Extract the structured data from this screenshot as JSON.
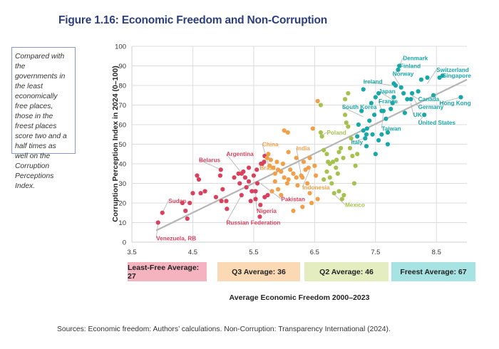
{
  "figure": {
    "title": "Figure 1.16: Economic Freedom and Non-Corruption",
    "callout": "Compared with the governments in the least economically free places, those in the freest places score two and a half times as well on the Corruption Perceptions Index.",
    "sources": "Sources: Economic freedom: Authors’ calculations. Non-Corruption: Transparency International (2024)."
  },
  "quartile_boxes": [
    {
      "label": "Least-Free Average: 27",
      "color": "#f5b3bf"
    },
    {
      "label": "Q3 Average: 36",
      "color": "#fbd9b5"
    },
    {
      "label": "Q2 Average: 46",
      "color": "#e3edbf"
    },
    {
      "label": "Freest Average: 67",
      "color": "#a8e3e3"
    }
  ],
  "chart_data": {
    "type": "scatter",
    "title": "Figure 1.16: Economic Freedom and Non-Corruption",
    "xlabel": "Average Economic Freedom 2000–2023",
    "ylabel": "Corruption Perception Index in 2024 (0–100)",
    "xlim": [
      3.5,
      9.0
    ],
    "ylim": [
      0,
      100
    ],
    "xticks": [
      3.5,
      4.5,
      5.5,
      6.5,
      7.5,
      8.5
    ],
    "yticks": [
      0,
      10,
      20,
      30,
      40,
      50,
      60,
      70,
      80,
      90,
      100
    ],
    "grid": true,
    "trendline": {
      "x": [
        3.9,
        9.0
      ],
      "y": [
        6,
        83
      ],
      "color": "#b5b5b5"
    },
    "series": [
      {
        "name": "Least-Free",
        "color": "#d9425f",
        "points": [
          [
            3.93,
            10
          ],
          [
            4.0,
            15
          ],
          [
            4.33,
            20
          ],
          [
            4.38,
            16
          ],
          [
            4.41,
            12
          ],
          [
            4.45,
            20
          ],
          [
            4.5,
            25
          ],
          [
            4.57,
            34
          ],
          [
            4.6,
            32
          ],
          [
            4.63,
            25
          ],
          [
            4.7,
            26
          ],
          [
            4.88,
            23
          ],
          [
            4.95,
            34
          ],
          [
            4.96,
            37
          ],
          [
            4.97,
            21
          ],
          [
            4.99,
            27
          ],
          [
            5.05,
            21
          ],
          [
            5.06,
            17
          ],
          [
            5.18,
            33
          ],
          [
            5.25,
            35
          ],
          [
            5.3,
            35
          ],
          [
            5.33,
            36
          ],
          [
            5.27,
            30
          ],
          [
            5.3,
            24
          ],
          [
            5.38,
            28
          ],
          [
            5.42,
            31
          ],
          [
            5.45,
            21
          ],
          [
            5.47,
            26
          ],
          [
            5.53,
            26
          ],
          [
            5.56,
            30
          ],
          [
            5.53,
            22
          ],
          [
            5.6,
            13
          ],
          [
            5.61,
            19
          ],
          [
            5.62,
            40
          ],
          [
            5.64,
            40
          ],
          [
            5.67,
            41
          ],
          [
            5.68,
            44
          ],
          [
            5.68,
            23
          ],
          [
            5.73,
            24
          ],
          [
            5.36,
            33
          ],
          [
            5.5,
            34
          ],
          [
            5.42,
            38
          ],
          [
            5.55,
            37
          ]
        ]
      },
      {
        "name": "Q3",
        "color": "#f0a04b",
        "points": [
          [
            5.72,
            43
          ],
          [
            5.74,
            45
          ],
          [
            5.78,
            42
          ],
          [
            5.82,
            38
          ],
          [
            5.85,
            35
          ],
          [
            5.76,
            39
          ],
          [
            5.88,
            41
          ],
          [
            5.9,
            37
          ],
          [
            5.95,
            36
          ],
          [
            5.85,
            31
          ],
          [
            5.8,
            26
          ],
          [
            5.9,
            27
          ],
          [
            5.95,
            24
          ],
          [
            6.0,
            57
          ],
          [
            6.06,
            56
          ],
          [
            6.07,
            46
          ],
          [
            6.0,
            33
          ],
          [
            6.05,
            30
          ],
          [
            6.1,
            37
          ],
          [
            6.15,
            35
          ],
          [
            6.2,
            33
          ],
          [
            6.22,
            29
          ],
          [
            6.28,
            34
          ],
          [
            6.3,
            33
          ],
          [
            6.35,
            37
          ],
          [
            6.4,
            38
          ],
          [
            6.38,
            30
          ],
          [
            6.47,
            58
          ],
          [
            6.55,
            72
          ],
          [
            6.42,
            43
          ],
          [
            6.5,
            39
          ],
          [
            6.52,
            34
          ],
          [
            6.45,
            20
          ],
          [
            6.3,
            18
          ],
          [
            6.15,
            16
          ],
          [
            6.42,
            25
          ],
          [
            6.55,
            22
          ],
          [
            6.07,
            32
          ],
          [
            5.98,
            40
          ],
          [
            6.2,
            43
          ],
          [
            6.32,
            41
          ]
        ]
      },
      {
        "name": "Q2",
        "color": "#a6c24e",
        "points": [
          [
            6.6,
            70
          ],
          [
            6.6,
            56
          ],
          [
            6.62,
            54
          ],
          [
            6.65,
            47
          ],
          [
            6.7,
            45
          ],
          [
            6.72,
            41
          ],
          [
            6.75,
            40
          ],
          [
            6.7,
            36
          ],
          [
            6.75,
            33
          ],
          [
            6.78,
            30
          ],
          [
            6.8,
            41
          ],
          [
            6.85,
            38
          ],
          [
            6.86,
            42
          ],
          [
            6.88,
            35
          ],
          [
            6.9,
            46
          ],
          [
            6.9,
            26
          ],
          [
            6.95,
            22
          ],
          [
            6.93,
            48
          ],
          [
            6.97,
            43
          ],
          [
            7.0,
            65
          ],
          [
            7.02,
            61
          ],
          [
            7.05,
            59
          ],
          [
            7.08,
            48
          ],
          [
            7.1,
            53
          ],
          [
            7.12,
            44
          ],
          [
            7.15,
            30
          ],
          [
            7.0,
            73
          ],
          [
            7.05,
            76
          ],
          [
            7.17,
            39
          ],
          [
            7.2,
            45
          ],
          [
            6.98,
            24
          ],
          [
            6.65,
            32
          ],
          [
            6.82,
            25
          ]
        ]
      },
      {
        "name": "Freest",
        "color": "#19a7a7",
        "points": [
          [
            7.2,
            54
          ],
          [
            7.22,
            60
          ],
          [
            7.27,
            67
          ],
          [
            7.3,
            57
          ],
          [
            7.33,
            53
          ],
          [
            7.35,
            49
          ],
          [
            7.36,
            58
          ],
          [
            7.4,
            62
          ],
          [
            7.45,
            55
          ],
          [
            7.48,
            65
          ],
          [
            7.5,
            74
          ],
          [
            7.55,
            76
          ],
          [
            7.6,
            67
          ],
          [
            7.63,
            67
          ],
          [
            7.67,
            63
          ],
          [
            7.75,
            68
          ],
          [
            7.78,
            71
          ],
          [
            7.8,
            81
          ],
          [
            7.83,
            80
          ],
          [
            7.87,
            88
          ],
          [
            7.89,
            90
          ],
          [
            7.92,
            79
          ],
          [
            7.96,
            76
          ],
          [
            7.98,
            66
          ],
          [
            8.02,
            73
          ],
          [
            8.08,
            73
          ],
          [
            8.1,
            76
          ],
          [
            8.2,
            77
          ],
          [
            8.25,
            83
          ],
          [
            8.3,
            65
          ],
          [
            8.35,
            84
          ],
          [
            8.45,
            75
          ],
          [
            8.55,
            84
          ],
          [
            7.3,
            78
          ],
          [
            7.35,
            55
          ],
          [
            7.6,
            55
          ],
          [
            7.7,
            50
          ],
          [
            7.5,
            45
          ],
          [
            7.55,
            52
          ],
          [
            7.43,
            71
          ],
          [
            8.9,
            74
          ],
          [
            8.6,
            85
          ],
          [
            7.8,
            74
          ],
          [
            7.7,
            56
          ]
        ]
      }
    ],
    "annotations": [
      {
        "label": "Venezuela, RB",
        "series": 0,
        "point": [
          3.93,
          10
        ],
        "text_at": [
          3.9,
          1
        ]
      },
      {
        "label": "Sudan",
        "series": 0,
        "point": [
          4.0,
          15
        ],
        "text_at": [
          4.1,
          20
        ]
      },
      {
        "label": "Belarus",
        "series": 0,
        "point": [
          4.96,
          37
        ],
        "text_at": [
          4.6,
          41
        ]
      },
      {
        "label": "Argentina",
        "series": 0,
        "point": [
          5.36,
          33
        ],
        "text_at": [
          5.05,
          44
        ]
      },
      {
        "label": "Russian Federation",
        "series": 0,
        "point": [
          5.3,
          24
        ],
        "text_at": [
          5.05,
          9
        ]
      },
      {
        "label": "Nigeria",
        "series": 0,
        "point": [
          5.53,
          26
        ],
        "text_at": [
          5.55,
          15
        ]
      },
      {
        "label": "Pakistan",
        "series": 0,
        "point": [
          5.61,
          30
        ],
        "text_at": [
          5.95,
          21
        ]
      },
      {
        "label": "China",
        "series": 1,
        "point": [
          5.74,
          40
        ],
        "text_at": [
          5.64,
          49
        ]
      },
      {
        "label": "Brazil",
        "series": 1,
        "point": [
          5.64,
          40
        ],
        "text_at": [
          5.6,
          37
        ]
      },
      {
        "label": "India",
        "series": 1,
        "point": [
          6.28,
          34
        ],
        "text_at": [
          6.2,
          47
        ]
      },
      {
        "label": "Indonesia",
        "series": 1,
        "point": [
          6.42,
          37
        ],
        "text_at": [
          6.3,
          27
        ]
      },
      {
        "label": "Poland",
        "series": 2,
        "point": [
          6.6,
          54
        ],
        "text_at": [
          6.7,
          55
        ]
      },
      {
        "label": "Mexico",
        "series": 2,
        "point": [
          6.8,
          25
        ],
        "text_at": [
          7.0,
          18
        ]
      },
      {
        "label": "Italy",
        "series": 3,
        "point": [
          7.33,
          53
        ],
        "text_at": [
          7.1,
          50
        ]
      },
      {
        "label": "South Korea",
        "series": 3,
        "point": [
          7.3,
          64
        ],
        "text_at": [
          6.95,
          68
        ]
      },
      {
        "label": "Taiwan",
        "series": 3,
        "point": [
          7.63,
          67
        ],
        "text_at": [
          7.6,
          57
        ]
      },
      {
        "label": "France",
        "series": 3,
        "point": [
          7.6,
          67
        ],
        "text_at": [
          7.55,
          71
        ]
      },
      {
        "label": "Japan",
        "series": 3,
        "point": [
          7.87,
          71
        ],
        "text_at": [
          7.55,
          76
        ]
      },
      {
        "label": "Ireland",
        "series": 3,
        "point": [
          7.78,
          80
        ],
        "text_at": [
          7.3,
          81
        ]
      },
      {
        "label": "Norway",
        "series": 3,
        "point": [
          7.92,
          79
        ],
        "text_at": [
          7.78,
          85
        ]
      },
      {
        "label": "Finland",
        "series": 3,
        "point": [
          7.87,
          88
        ],
        "text_at": [
          7.9,
          89
        ]
      },
      {
        "label": "Denmark",
        "series": 3,
        "point": [
          7.89,
          90
        ],
        "text_at": [
          7.95,
          93
        ]
      },
      {
        "label": "Canada",
        "series": 3,
        "point": [
          8.1,
          75
        ],
        "text_at": [
          8.2,
          72
        ]
      },
      {
        "label": "Germany",
        "series": 3,
        "point": [
          8.1,
          75
        ],
        "text_at": [
          8.2,
          68
        ]
      },
      {
        "label": "UK",
        "series": 3,
        "point": [
          8.08,
          71
        ],
        "text_at": [
          8.12,
          64
        ]
      },
      {
        "label": "United States",
        "series": 3,
        "point": [
          8.3,
          65
        ],
        "text_at": [
          8.2,
          60
        ]
      },
      {
        "label": "Switzerland",
        "series": 3,
        "point": [
          8.35,
          81
        ],
        "text_at": [
          8.5,
          87
        ]
      },
      {
        "label": "Singapore",
        "series": 3,
        "point": [
          8.6,
          85
        ],
        "text_at": [
          8.6,
          84
        ]
      },
      {
        "label": "Hong Kong",
        "series": 3,
        "point": [
          8.9,
          74
        ],
        "text_at": [
          8.55,
          70
        ]
      }
    ]
  }
}
